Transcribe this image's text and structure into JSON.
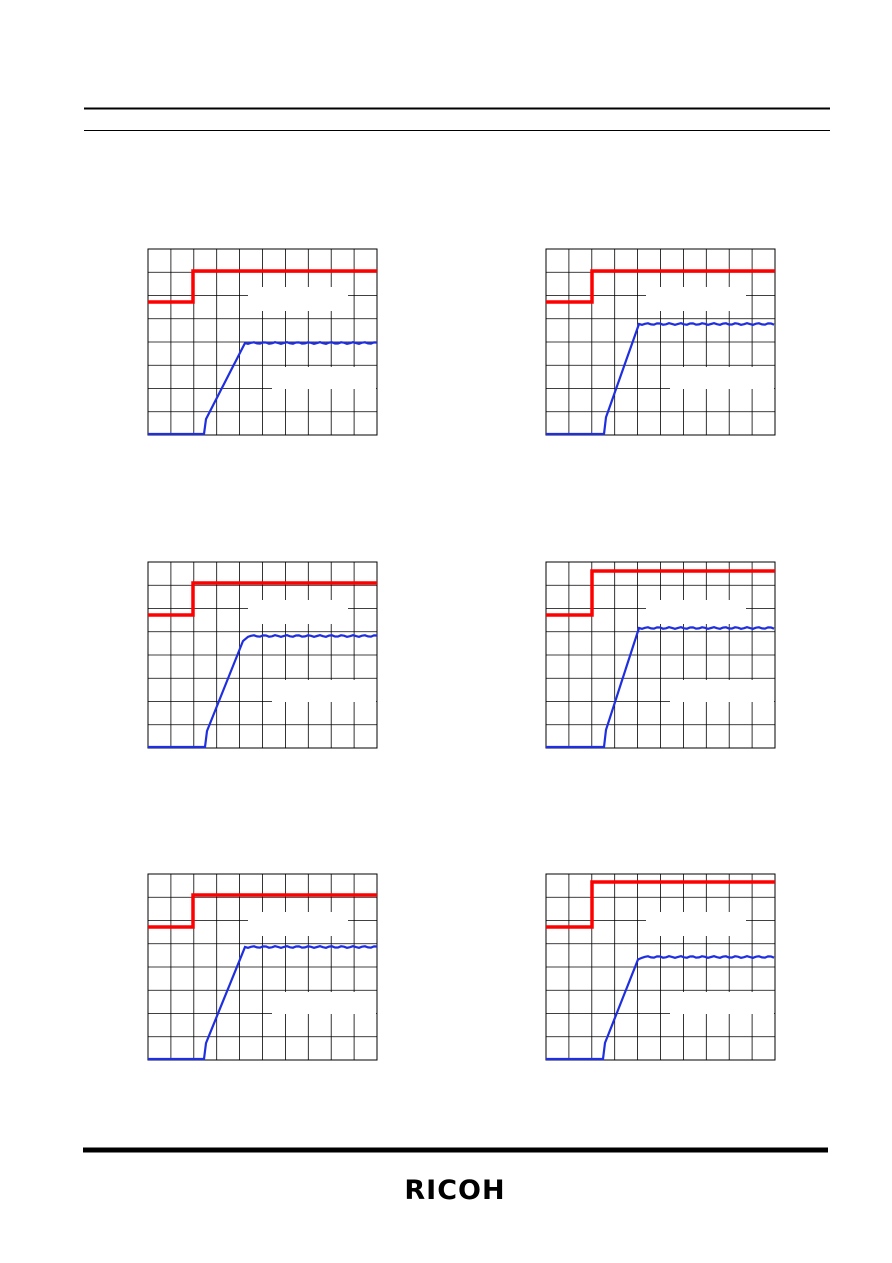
{
  "footer": {
    "logo": "RICOH"
  }
}
